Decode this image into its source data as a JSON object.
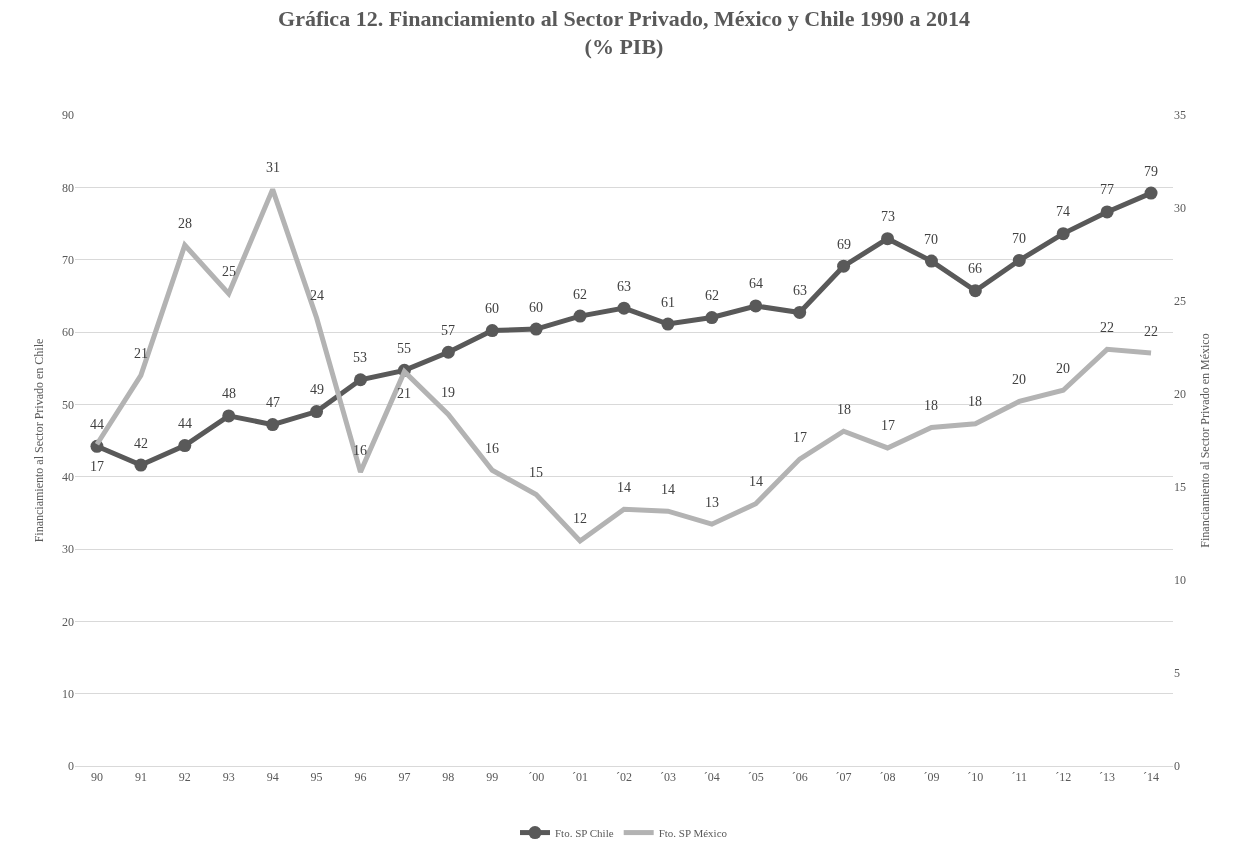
{
  "chart_data": {
    "type": "line",
    "title": "Gráfica 12. Financiamiento al Sector Privado, México y Chile 1990 a 2014\n(% PIB)",
    "ylabel": "Financiamiento al Sector Privado en Chile",
    "y2label": "Financiamiento al Sector Privado en México",
    "categories": [
      "90",
      "91",
      "92",
      "93",
      "94",
      "95",
      "96",
      "97",
      "98",
      "99",
      "´00",
      "´01",
      "´02",
      "´03",
      "´04",
      "´05",
      "´06",
      "´07",
      "´08",
      "´09",
      "´10",
      "´11",
      "´12",
      "´13",
      "´14"
    ],
    "series": [
      {
        "name": "Fto. SP Chile",
        "color": "#595959",
        "marker": "circle",
        "values": [
          44.2,
          41.6,
          44.3,
          48.4,
          47.2,
          49.0,
          53.4,
          54.7,
          57.2,
          60.2,
          60.4,
          62.2,
          63.3,
          61.1,
          62.0,
          63.6,
          62.7,
          69.1,
          72.9,
          69.8,
          65.7,
          69.9,
          73.6,
          76.6,
          79.2
        ],
        "value_labels": [
          "44",
          "42",
          "44",
          "48",
          "47",
          "49",
          "53",
          "55",
          "57",
          "60",
          "60",
          "62",
          "63",
          "61",
          "62",
          "64",
          "63",
          "69",
          "73",
          "70",
          "66",
          "70",
          "74",
          "77",
          "79"
        ]
      },
      {
        "name": "Fto. SP México",
        "color": "#b3b3b3",
        "marker": "none",
        "axis": "y2",
        "values": [
          17.3,
          21.0,
          28.0,
          25.4,
          31.0,
          24.1,
          15.8,
          21.2,
          18.9,
          15.9,
          14.6,
          12.1,
          13.8,
          13.7,
          13.0,
          14.1,
          16.5,
          18.0,
          17.1,
          18.2,
          18.4,
          19.6,
          20.2,
          22.4,
          22.2
        ],
        "value_labels": [
          "17",
          "21",
          "28",
          "25",
          "31",
          "24",
          "16",
          "21",
          "19",
          "16",
          "15",
          "12",
          "14",
          "14",
          "13",
          "14",
          "17",
          "18",
          "17",
          "18",
          "18",
          "20",
          "20",
          "22",
          "22"
        ]
      }
    ],
    "ylim": [
      0,
      90
    ],
    "yticks": [
      0,
      10,
      20,
      30,
      40,
      50,
      60,
      70,
      80,
      90
    ],
    "y2lim": [
      0,
      35
    ],
    "y2ticks": [
      0,
      5,
      10,
      15,
      20,
      25,
      30,
      35
    ],
    "grid": "y",
    "legend": "bottom",
    "line_style": "solid"
  }
}
